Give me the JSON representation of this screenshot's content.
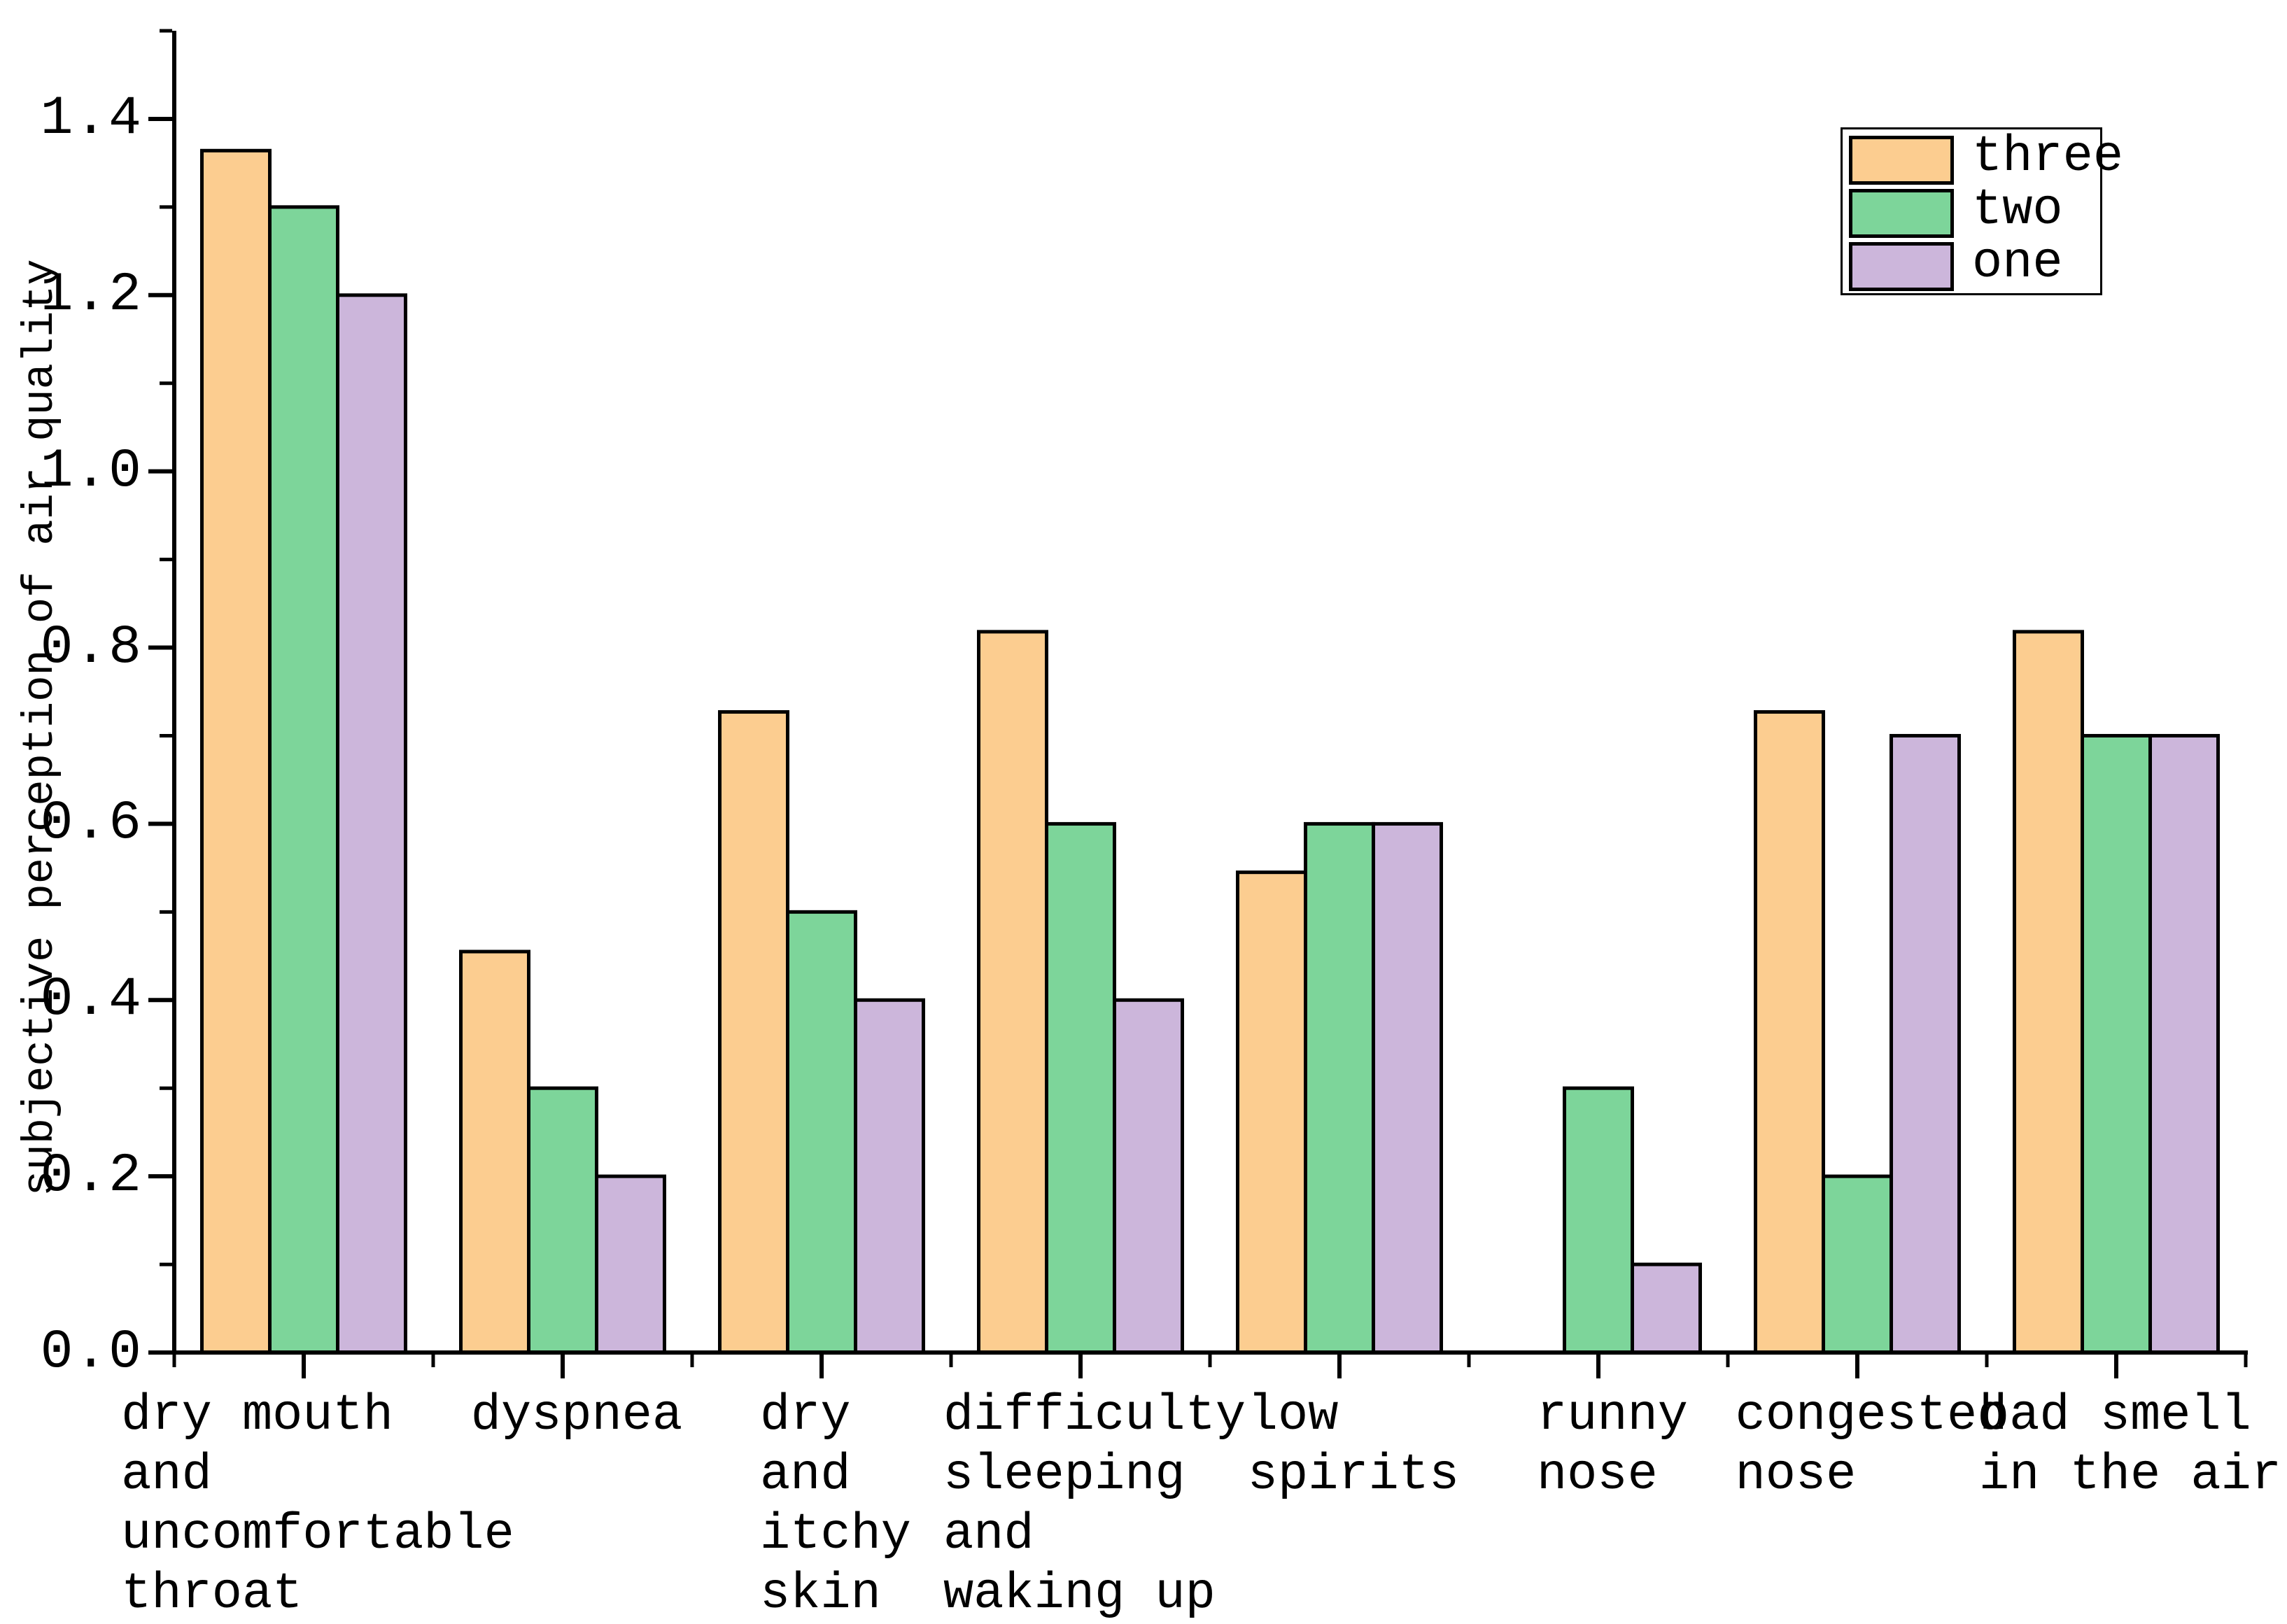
{
  "figure": {
    "background": "#ffffff",
    "axis_color": "#000000"
  },
  "chart_data": {
    "type": "bar",
    "title": "",
    "xlabel": "",
    "ylabel": "subjective perception of air quality",
    "ylim": [
      0,
      1.5
    ],
    "yticks": [
      0.0,
      0.2,
      0.4,
      0.6,
      0.8,
      1.0,
      1.2,
      1.4
    ],
    "ytick_minor": [
      0.1,
      0.3,
      0.5,
      0.7,
      0.9,
      1.1,
      1.3,
      1.5
    ],
    "grid": false,
    "bar_edge_color": "#000000",
    "legend_position": "upper right",
    "categories": [
      "dry mouth and uncomfortable throat",
      "dyspnea",
      "dry and itchy skin",
      "difficulty sleeping and waking up",
      "low spirits",
      "runny nose",
      "congested nose",
      "bad smell in the air"
    ],
    "category_label_lines": [
      [
        "dry mouth",
        "and",
        "uncomfortable",
        "throat"
      ],
      [
        "dyspnea"
      ],
      [
        "dry",
        "and",
        "itchy",
        "skin"
      ],
      [
        "difficulty",
        "sleeping",
        "and",
        "waking up"
      ],
      [
        "low",
        "spirits"
      ],
      [
        "runny",
        "nose"
      ],
      [
        "congested",
        "nose"
      ],
      [
        "bad smell",
        "in the air"
      ]
    ],
    "series": [
      {
        "name": "three",
        "color": "#FCCD90",
        "values": [
          1.364,
          0.455,
          0.727,
          0.818,
          0.545,
          0,
          0.727,
          0.818
        ]
      },
      {
        "name": "two",
        "color": "#7DD59A",
        "values": [
          1.3,
          0.3,
          0.5,
          0.6,
          0.6,
          0.3,
          0.2,
          0.7
        ]
      },
      {
        "name": "one",
        "color": "#CCB6DB",
        "values": [
          1.2,
          0.2,
          0.4,
          0.4,
          0.6,
          0.1,
          0.7,
          0.7
        ]
      }
    ]
  }
}
